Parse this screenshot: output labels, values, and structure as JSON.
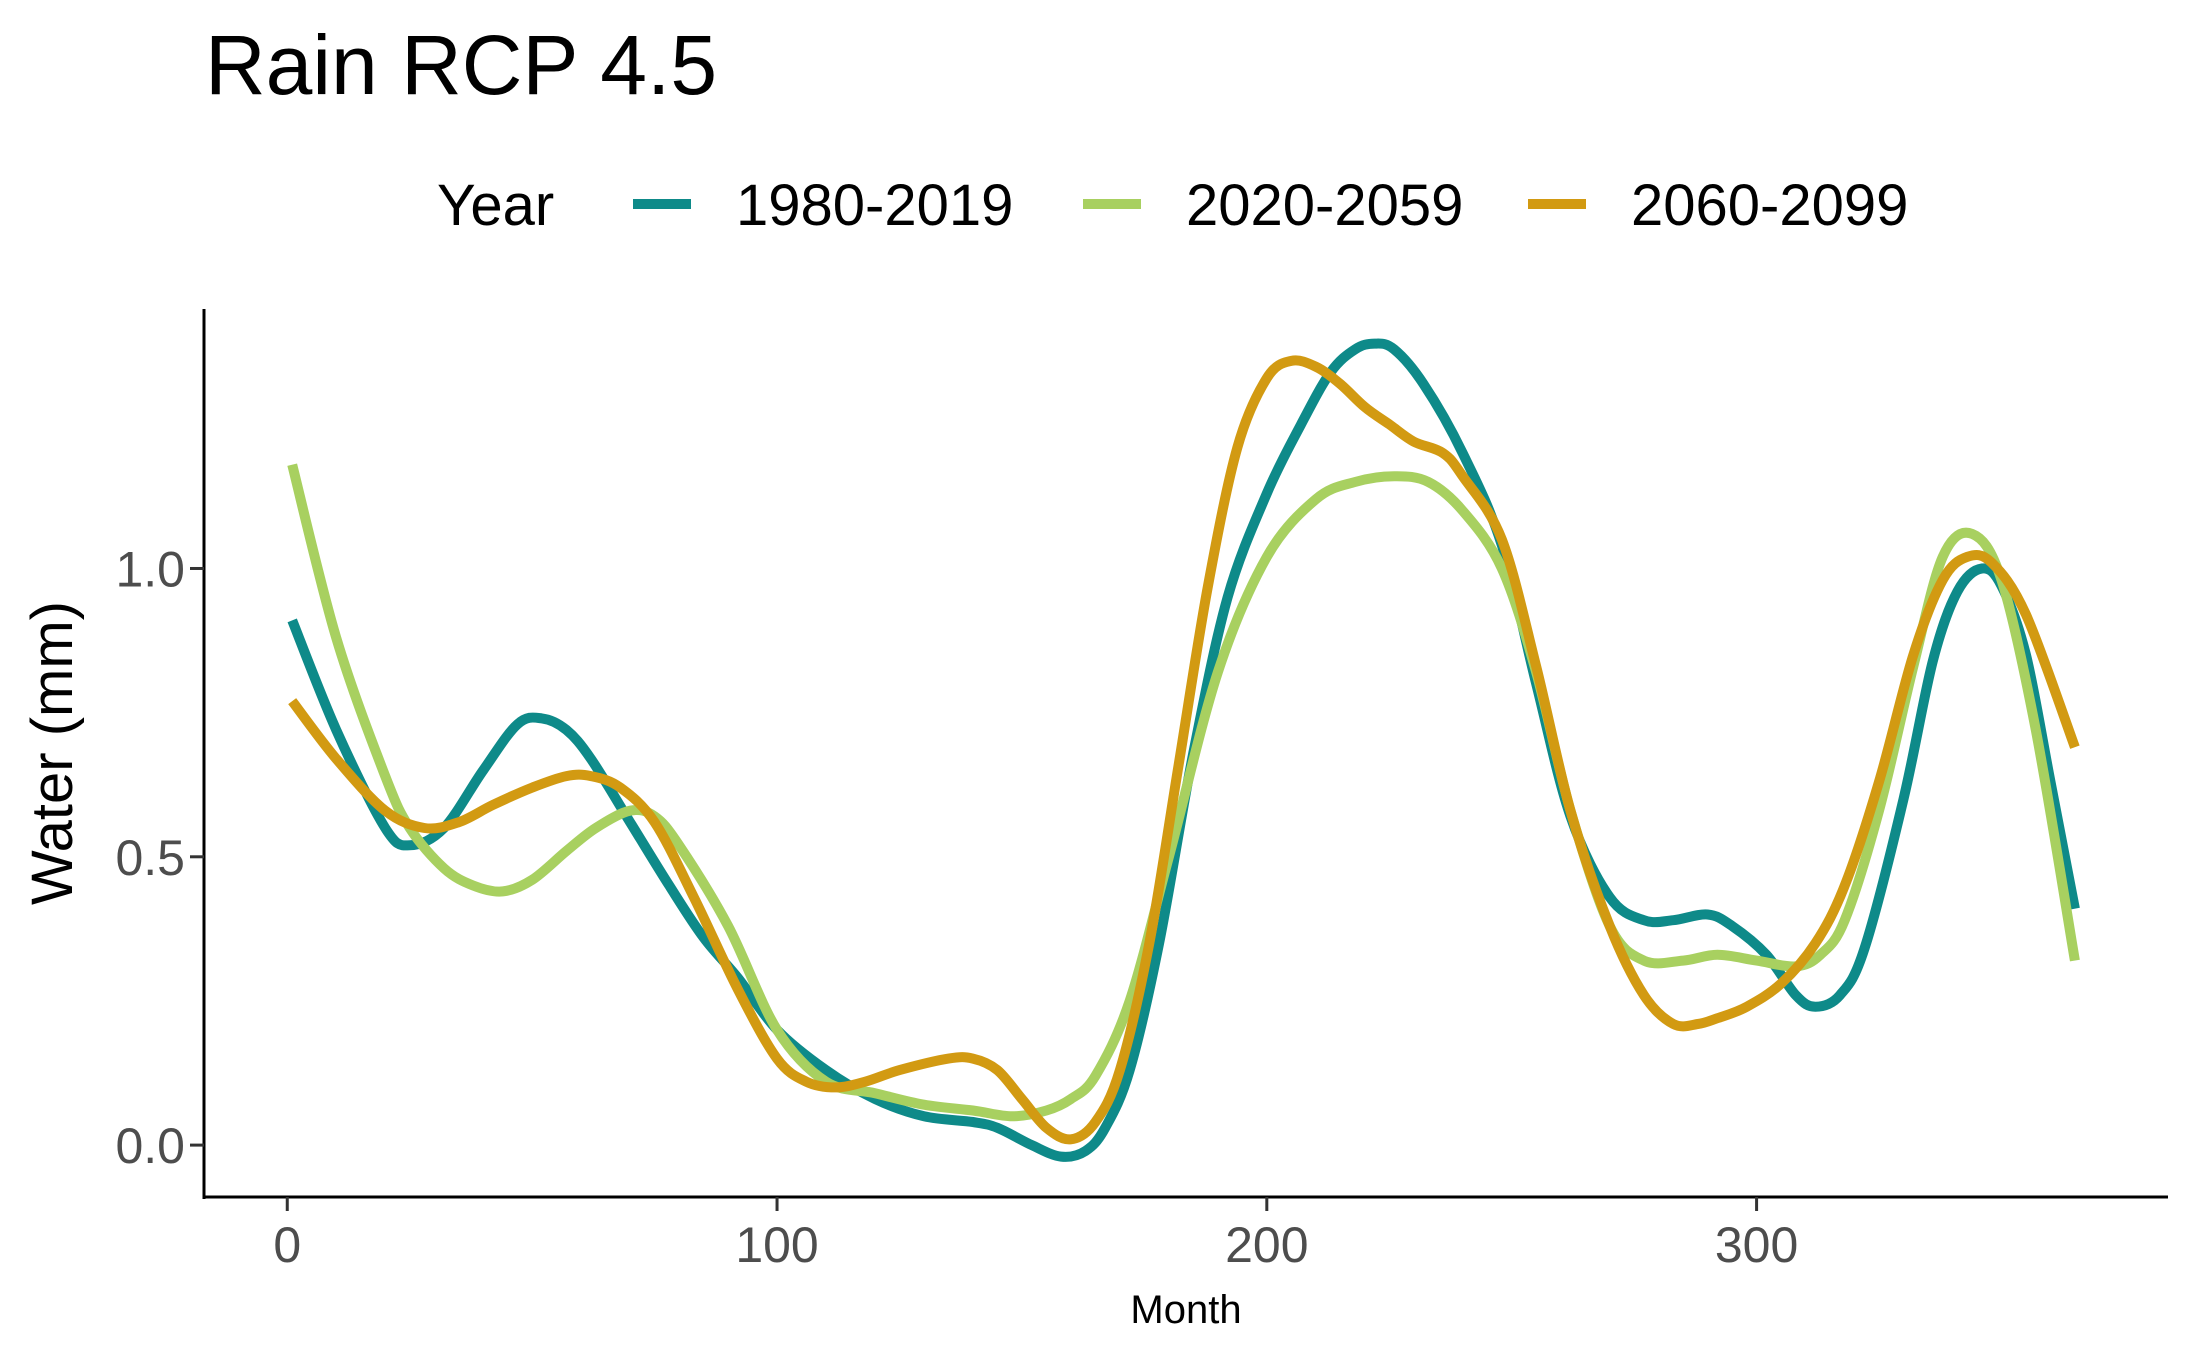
{
  "chart_data": {
    "type": "line",
    "title": "Rain RCP 4.5",
    "xlabel": "Month",
    "ylabel": "Water (mm)",
    "xlim": [
      -17,
      384
    ],
    "ylim": [
      -0.09,
      1.45
    ],
    "xticks": [
      0,
      100,
      200,
      300
    ],
    "xtick_labels": [
      "0",
      "100",
      "200",
      "300"
    ],
    "yticks": [
      0.0,
      0.5,
      1.0
    ],
    "ytick_labels": [
      "0.0",
      "0.5",
      "1.0"
    ],
    "grid": false,
    "legend": {
      "title": "Year",
      "position": "top"
    },
    "series": [
      {
        "name": "1980-2019",
        "color": "#0e8a89",
        "x": [
          1,
          10,
          20,
          25,
          32,
          40,
          47,
          52,
          57,
          62,
          70,
          78,
          85,
          92,
          100,
          110,
          120,
          130,
          140,
          145,
          152,
          158,
          163,
          167,
          172,
          178,
          185,
          192,
          200,
          207,
          213,
          218,
          222,
          226,
          232,
          240,
          248,
          255,
          262,
          270,
          277,
          283,
          290,
          295,
          302,
          308,
          312,
          317,
          322,
          330,
          336,
          341,
          346,
          350,
          355,
          360,
          365
        ],
        "values": [
          0.91,
          0.72,
          0.55,
          0.52,
          0.55,
          0.65,
          0.73,
          0.74,
          0.72,
          0.67,
          0.56,
          0.45,
          0.36,
          0.29,
          0.2,
          0.13,
          0.08,
          0.05,
          0.04,
          0.03,
          0.0,
          -0.02,
          -0.01,
          0.03,
          0.13,
          0.35,
          0.68,
          0.95,
          1.13,
          1.25,
          1.34,
          1.38,
          1.39,
          1.38,
          1.32,
          1.2,
          1.04,
          0.8,
          0.57,
          0.43,
          0.39,
          0.39,
          0.4,
          0.38,
          0.33,
          0.26,
          0.24,
          0.26,
          0.34,
          0.6,
          0.84,
          0.96,
          1.0,
          0.97,
          0.85,
          0.63,
          0.41
        ]
      },
      {
        "name": "2020-2059",
        "color": "#a8d060",
        "x": [
          1,
          10,
          20,
          25,
          32,
          38,
          44,
          50,
          57,
          63,
          70,
          75,
          80,
          90,
          100,
          110,
          120,
          130,
          140,
          148,
          155,
          160,
          165,
          172,
          180,
          190,
          200,
          210,
          218,
          226,
          233,
          240,
          248,
          255,
          262,
          270,
          277,
          285,
          292,
          300,
          308,
          313,
          318,
          325,
          332,
          338,
          344,
          350,
          357,
          365
        ],
        "values": [
          1.18,
          0.88,
          0.64,
          0.55,
          0.48,
          0.45,
          0.44,
          0.46,
          0.51,
          0.55,
          0.58,
          0.57,
          0.52,
          0.38,
          0.2,
          0.11,
          0.09,
          0.07,
          0.06,
          0.05,
          0.06,
          0.08,
          0.12,
          0.25,
          0.5,
          0.82,
          1.02,
          1.12,
          1.15,
          1.16,
          1.15,
          1.1,
          1.0,
          0.82,
          0.58,
          0.38,
          0.32,
          0.32,
          0.33,
          0.32,
          0.31,
          0.33,
          0.39,
          0.58,
          0.83,
          1.02,
          1.06,
          0.98,
          0.72,
          0.32
        ]
      },
      {
        "name": "2060-2099",
        "color": "#d29a12",
        "x": [
          1,
          10,
          20,
          28,
          35,
          42,
          50,
          57,
          62,
          68,
          75,
          83,
          92,
          100,
          106,
          112,
          118,
          125,
          135,
          140,
          145,
          150,
          155,
          160,
          165,
          170,
          176,
          182,
          188,
          194,
          200,
          205,
          210,
          215,
          220,
          225,
          230,
          236,
          240,
          248,
          255,
          262,
          270,
          277,
          283,
          288,
          292,
          298,
          305,
          312,
          318,
          325,
          332,
          338,
          343,
          348,
          355,
          365
        ],
        "values": [
          0.77,
          0.67,
          0.58,
          0.55,
          0.56,
          0.59,
          0.62,
          0.64,
          0.64,
          0.62,
          0.56,
          0.43,
          0.27,
          0.15,
          0.11,
          0.1,
          0.11,
          0.13,
          0.15,
          0.15,
          0.13,
          0.08,
          0.03,
          0.01,
          0.04,
          0.13,
          0.35,
          0.66,
          0.97,
          1.21,
          1.33,
          1.36,
          1.35,
          1.32,
          1.28,
          1.25,
          1.22,
          1.2,
          1.16,
          1.05,
          0.83,
          0.58,
          0.38,
          0.26,
          0.21,
          0.21,
          0.22,
          0.24,
          0.28,
          0.35,
          0.45,
          0.63,
          0.85,
          0.98,
          1.02,
          1.01,
          0.92,
          0.69
        ]
      }
    ]
  }
}
